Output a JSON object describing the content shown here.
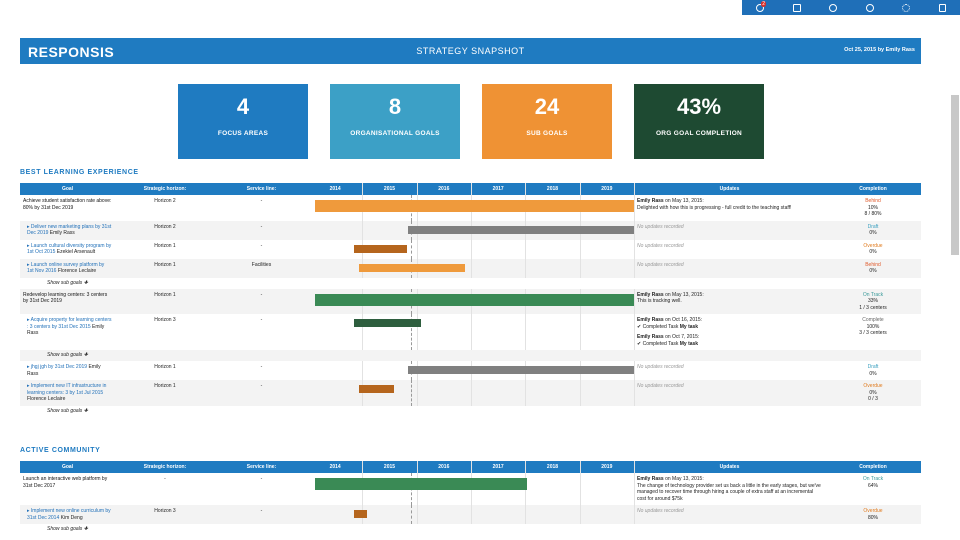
{
  "toolbar_badge": "2",
  "header": {
    "logo": "RESPONSIS",
    "title": "STRATEGY SNAPSHOT",
    "meta": "Oct 25, 2015 by Emily Rass"
  },
  "stats": [
    {
      "value": "4",
      "label": "FOCUS AREAS",
      "color": "#1f7bc1"
    },
    {
      "value": "8",
      "label": "ORGANISATIONAL GOALS",
      "color": "#3ca0c6"
    },
    {
      "value": "24",
      "label": "SUB GOALS",
      "color": "#ef9234"
    },
    {
      "value": "43%",
      "label": "ORG GOAL COMPLETION",
      "color": "#1e4a32"
    }
  ],
  "columns": {
    "goal": "Goal",
    "horizon": "Strategic horizon:",
    "service": "Service line:",
    "updates": "Updates",
    "completion": "Completion"
  },
  "years": [
    "2014",
    "2015",
    "2016",
    "2017",
    "2018",
    "2019"
  ],
  "sections": [
    {
      "title": "BEST LEARNING EXPERIENCE",
      "rows": [
        {
          "goal": "Achieve student satisfaction rate above: 80% by 31st Dec 2019",
          "horizon": "Horizon 2",
          "service": "-",
          "bar": [
            2014.13,
            2020.0
          ],
          "bar_color": "#ef9a3c",
          "updates": [
            {
              "author": "Emily Rass",
              "meta": "on May 13, 2015:",
              "text": "Delighted with how this is progressing - full credit to the teaching staff!"
            }
          ],
          "status": "Behind",
          "status_color": "#e05a2b",
          "percent": "10%",
          "progress": "8 / 80%"
        },
        {
          "link": "Deliver new marketing plans by 31st Dec 2019",
          "owner": "Emily Rass",
          "horizon": "Horizon 2",
          "service": "-",
          "bar": [
            2015.84,
            2020.0
          ],
          "bar_color": "#808080",
          "no_updates": "No updates recorded",
          "status": "Draft",
          "status_color": "#3a9fbf",
          "percent": "0%"
        },
        {
          "link": "Launch cultural diversity program by 1st Oct 2015",
          "owner": "Ezekiel Arsenault",
          "horizon": "Horizon 1",
          "service": "-",
          "bar": [
            2014.85,
            2015.82
          ],
          "bar_color": "#b5651d",
          "no_updates": "No updates recorded",
          "status": "Overdue",
          "status_color": "#e07b1f",
          "percent": "0%"
        },
        {
          "link": "Launch online survey platform by 1st Nov 2016",
          "owner": "Florence Leclaire",
          "horizon": "Horizon 1",
          "service": "Facilities",
          "bar": [
            2014.94,
            2016.89
          ],
          "bar_color": "#ef9a3c",
          "no_updates": "No updates recorded",
          "status": "Behind",
          "status_color": "#e05a2b",
          "percent": "0%"
        },
        {
          "show": "Show sub goals"
        },
        {
          "goal": "Redevelop learning centers: 3 centers by 31st Dec 2019",
          "horizon": "Horizon 1",
          "service": "-",
          "bar": [
            2014.13,
            2020.0
          ],
          "bar_color": "#3a8a55",
          "updates": [
            {
              "author": "Emily Rass",
              "meta": "on May 13, 2015:",
              "text": "This is tracking well."
            }
          ],
          "status": "On Track",
          "status_color": "#3a9a9a",
          "percent": "33%",
          "progress": "1 / 3 centers"
        },
        {
          "link": "Acquire property for learning centers : 3 centers by 31st Dec 2015",
          "owner": "Emily Rass",
          "horizon": "Horizon 3",
          "service": "-",
          "bar": [
            2014.85,
            2016.08
          ],
          "bar_color": "#2e5e3e",
          "updates": [
            {
              "author": "Emily Rass",
              "meta": "on Oct 16, 2015:",
              "text": "Completed Task",
              "task": "My task"
            },
            {
              "author": "Emily Rass",
              "meta": "on Oct 7, 2015:",
              "text": "Completed Task",
              "task": "My task"
            }
          ],
          "status": "Complete",
          "status_color": "#666666",
          "percent": "100%",
          "progress": "3 / 3 centers"
        },
        {
          "show": "Show sub goals"
        },
        {
          "link": "jhgj jgh by 31st Dec 2019",
          "owner": "Emily Rass",
          "horizon": "Horizon 1",
          "service": "-",
          "bar": [
            2015.84,
            2020.0
          ],
          "bar_color": "#808080",
          "no_updates": "No updates recorded",
          "status": "Draft",
          "status_color": "#3a9fbf",
          "percent": "0%"
        },
        {
          "link": "Implement new IT infrastructure in learning centers: 3 by 1st Jul 2015",
          "owner": "Florence Leclaire",
          "horizon": "Horizon 1",
          "service": "-",
          "bar": [
            2014.94,
            2015.58
          ],
          "bar_color": "#b5651d",
          "no_updates": "No updates recorded",
          "status": "Overdue",
          "status_color": "#e07b1f",
          "percent": "0%",
          "progress": "0 / 3"
        },
        {
          "show": "Show sub goals"
        }
      ]
    },
    {
      "title": "ACTIVE COMMUNITY",
      "rows": [
        {
          "goal": "Launch an interactive web platform by 31st Dec 2017",
          "horizon": "-",
          "service": "-",
          "bar": [
            2014.13,
            2018.03
          ],
          "bar_color": "#3a8a55",
          "updates": [
            {
              "author": "Emily Rass",
              "meta": "on May 13, 2015:",
              "text": "The change of technology provider set us back a little in the early stages, but we've managed to recover time through hiring a couple of extra staff at an incremental cost for around $75k"
            }
          ],
          "status": "On Track",
          "status_color": "#3a9a9a",
          "percent": "64%"
        },
        {
          "link": "Implement new online curriculum by 31st Dec 2014",
          "owner": "Kim Deng",
          "horizon": "Horizon 3",
          "service": "-",
          "bar": [
            2014.85,
            2015.09
          ],
          "bar_color": "#b5651d",
          "no_updates": "No updates recorded",
          "status": "Overdue",
          "status_color": "#e07b1f",
          "percent": "80%"
        },
        {
          "show": "Show sub goals"
        }
      ]
    }
  ]
}
